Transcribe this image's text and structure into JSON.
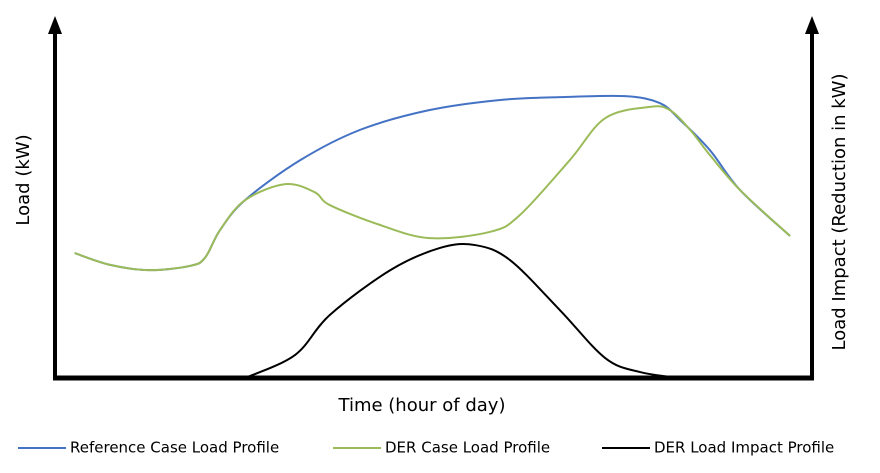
{
  "chart_data": {
    "type": "line",
    "x_label": "Time (hour of day)",
    "y_label": "Load (kW)",
    "y2_label": "Load Impact (Reduction in kW)",
    "xlim": [
      0,
      100
    ],
    "ylim": [
      0,
      100
    ],
    "y2lim": [
      0,
      100
    ],
    "grid": false,
    "legend": "bottom",
    "series": [
      {
        "name": "Reference  Case Load Profile",
        "color": "#4472c4",
        "x": [
          2.6,
          7.3,
          12.5,
          17.8,
          19.8,
          21.8,
          25.1,
          32.4,
          40.3,
          49.5,
          58.8,
          66.7,
          75.3,
          79.9,
          82.6,
          86.5,
          90.5,
          97.1
        ],
        "values": [
          35.9,
          32.5,
          31.0,
          32.2,
          34.5,
          42.5,
          51.1,
          62.6,
          71.3,
          77.0,
          79.9,
          80.7,
          81.0,
          79.0,
          74.1,
          65.5,
          54.0,
          40.8
        ]
      },
      {
        "name": "DER Case Load Profile",
        "color": "#9bbb59",
        "x": [
          2.6,
          7.3,
          12.5,
          17.8,
          19.8,
          21.8,
          25.1,
          30.4,
          34.3,
          36.3,
          42.9,
          49.5,
          57.5,
          61.4,
          68.0,
          72.7,
          78.6,
          81.2,
          83.9,
          86.5,
          90.5,
          97.1
        ],
        "values": [
          35.9,
          32.5,
          31.0,
          32.2,
          34.5,
          42.5,
          51.1,
          55.7,
          53.4,
          49.7,
          44.0,
          40.2,
          42.0,
          46.8,
          62.6,
          74.7,
          77.9,
          77.0,
          71.3,
          64.1,
          54.0,
          40.8
        ]
      },
      {
        "name": "DER Load Impact Profile",
        "color": "#000000",
        "axis": "y2",
        "x": [
          25.1,
          31.7,
          36.3,
          44.3,
          50.9,
          55.5,
          60.1,
          66.7,
          72.7,
          77.3,
          82.6
        ],
        "values": [
          0,
          6.6,
          18.1,
          31.0,
          37.4,
          38.2,
          33.9,
          19.5,
          5.7,
          1.7,
          0
        ]
      }
    ]
  }
}
